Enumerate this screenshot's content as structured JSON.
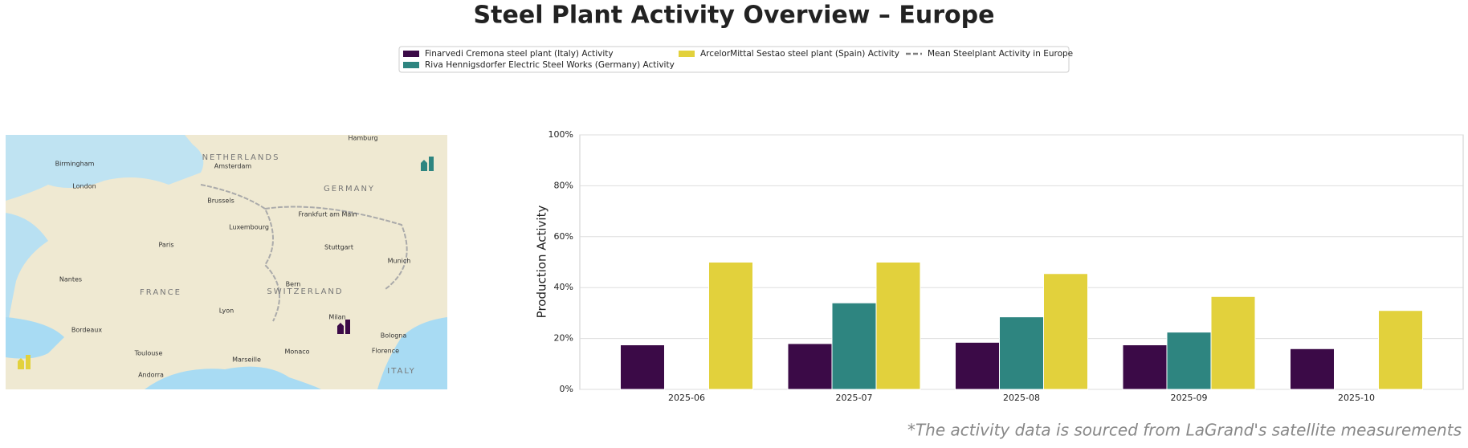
{
  "chart_data": {
    "type": "bar",
    "title": "Steel Plant Activity Overview – Europe",
    "y_label": "Production Activity",
    "footnote": "*The activity data is sourced from LaGrand's satellite measurements",
    "categories": [
      "2025-06",
      "2025-07",
      "2025-08",
      "2025-09",
      "2025-10"
    ],
    "series": [
      {
        "name": "Finarvedi Cremona steel plant (Italy) Activity",
        "color": "#3b0a47",
        "values": [
          17.5,
          18,
          18.5,
          17.5,
          16
        ]
      },
      {
        "name": "Riva Hennigsdorfer Electric Steel Works (Germany) Activity",
        "color": "#2e8580",
        "values": [
          null,
          34,
          28.5,
          22.5,
          null
        ]
      },
      {
        "name": "ArcelorMittal Sestao steel plant (Spain) Activity",
        "color": "#e2d13c",
        "values": [
          50,
          50,
          45.5,
          36.5,
          31
        ]
      },
      {
        "name": "Mean Steelplant Activity in Europe",
        "color": "#808080",
        "style": "dashed",
        "values": [
          null,
          null,
          null,
          null,
          null
        ]
      }
    ],
    "ylim": [
      0,
      100
    ],
    "yticks": [
      {
        "value": 0,
        "label": "0%"
      },
      {
        "value": 20,
        "label": "20%"
      },
      {
        "value": 40,
        "label": "40%"
      },
      {
        "value": 60,
        "label": "60%"
      },
      {
        "value": 80,
        "label": "80%"
      },
      {
        "value": 100,
        "label": "100%"
      }
    ],
    "grid": true,
    "legend": "top"
  },
  "map": {
    "labels": [
      "NETHERLANDS",
      "GERMANY",
      "FRANCE",
      "SWITZERLAND",
      "ITALY",
      "Amsterdam",
      "Brussels",
      "Paris",
      "London",
      "Hamburg",
      "Munich",
      "Milan",
      "Marseille",
      "Lyon",
      "Bern",
      "Monaco",
      "Nantes",
      "Bordeaux",
      "Toulouse",
      "Luxembourg",
      "Stuttgart",
      "Frankfurt am Main",
      "Birmingham",
      "Bologna",
      "Florence",
      "Andorra"
    ]
  }
}
